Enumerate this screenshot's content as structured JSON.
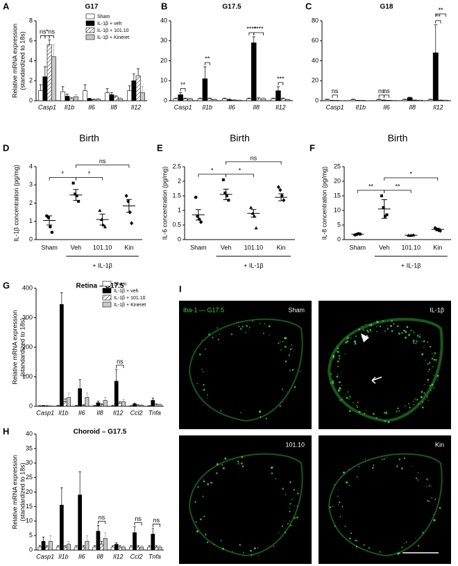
{
  "chart_data": [
    {
      "type": "bar",
      "panel": "A",
      "title": "G17",
      "ylabel": [
        "Relative mRNA expression",
        "(standardized to 18s)"
      ],
      "categories": [
        "Casp1",
        "Il1b",
        "Il6",
        "Il8",
        "Il12"
      ],
      "series": [
        {
          "name": "Sham",
          "color": "#ffffff",
          "values": [
            1,
            0.9,
            1,
            0.8,
            1
          ],
          "errors": [
            0.6,
            0.5,
            0.6,
            0.4,
            0.5
          ]
        },
        {
          "name": "IL-1β + veh",
          "color": "#000000",
          "values": [
            2.4,
            0.45,
            0.2,
            0.6,
            2
          ],
          "errors": [
            1,
            0.2,
            0.05,
            0.2,
            0.7
          ]
        },
        {
          "name": "IL-1β + 101.10",
          "color": "#ffffff",
          "hatch": true,
          "values": [
            5.6,
            0.2,
            0.1,
            0.4,
            2.5
          ],
          "errors": [
            0.5,
            0.1,
            0.05,
            0.1,
            0.7
          ]
        },
        {
          "name": "IL-1β + Kineret",
          "color": "#c8c8c8",
          "values": [
            4.4,
            0.4,
            0.15,
            0.2,
            0.8
          ],
          "errors": [
            1.2,
            0.2,
            0.05,
            0.1,
            0.6
          ]
        }
      ],
      "ylim": [
        0,
        8
      ],
      "yticks": [
        0,
        2,
        4,
        6,
        8
      ],
      "legend": "upper right",
      "annotations": [
        {
          "text": "ns",
          "category": 0,
          "between": [
            0,
            1
          ]
        },
        {
          "text": "*",
          "category": 0,
          "between": [
            1,
            2
          ]
        },
        {
          "text": "ns",
          "category": 0,
          "between": [
            2,
            3
          ]
        }
      ]
    },
    {
      "type": "bar",
      "panel": "B",
      "title": "G17.5",
      "categories": [
        "Casp1",
        "Il1b",
        "Il6",
        "Il8",
        "Il12"
      ],
      "series": [
        {
          "name": "Sham",
          "color": "#ffffff",
          "values": [
            1,
            1,
            1,
            1,
            1
          ],
          "errors": [
            0.3,
            0.3,
            0.3,
            0.3,
            0.3
          ]
        },
        {
          "name": "IL-1β + veh",
          "color": "#000000",
          "values": [
            3,
            11,
            0.5,
            29,
            5
          ],
          "errors": [
            1,
            6,
            0.3,
            3,
            2
          ]
        },
        {
          "name": "IL-1β + 101.10",
          "color": "#ffffff",
          "hatch": true,
          "values": [
            1,
            1,
            0.3,
            1,
            1
          ],
          "errors": [
            0.3,
            0.3,
            0.1,
            0.5,
            0.3
          ]
        },
        {
          "name": "IL-1β + Kineret",
          "color": "#c8c8c8",
          "values": [
            1,
            0.5,
            0.3,
            1,
            0.5
          ],
          "errors": [
            0.3,
            0.3,
            0.1,
            0.5,
            0.3
          ]
        }
      ],
      "ylim": [
        0,
        40
      ],
      "yticks": [
        0,
        10,
        20,
        30,
        40
      ],
      "annotations": [
        {
          "text": "**",
          "category": 0,
          "between": [
            1,
            2
          ]
        },
        {
          "text": "**",
          "category": 1,
          "between": [
            1,
            2
          ]
        },
        {
          "text": "****",
          "category": 3,
          "between": [
            0,
            1
          ]
        },
        {
          "text": "****",
          "category": 3,
          "between": [
            1,
            3
          ]
        },
        {
          "text": "***",
          "category": 4,
          "between": [
            1,
            2
          ]
        }
      ]
    },
    {
      "type": "bar",
      "panel": "C",
      "title": "G18",
      "categories": [
        "Casp1",
        "Il1b",
        "Il6",
        "Il8",
        "Il12"
      ],
      "series": [
        {
          "name": "Sham",
          "color": "#ffffff",
          "values": [
            1,
            1,
            1,
            1,
            1
          ],
          "errors": [
            0.5,
            0.5,
            0.5,
            0.5,
            0.5
          ]
        },
        {
          "name": "IL-1β + veh",
          "color": "#000000",
          "values": [
            0.3,
            0.3,
            0.5,
            3,
            48
          ],
          "errors": [
            0.1,
            0.1,
            0.2,
            0.5,
            28
          ]
        },
        {
          "name": "IL-1β + 101.10",
          "color": "#ffffff",
          "hatch": true,
          "values": [
            0.2,
            0.2,
            0.3,
            0.5,
            0.5
          ],
          "errors": [
            0.1,
            0.1,
            0.1,
            0.2,
            0.2
          ]
        },
        {
          "name": "IL-1β + Kineret",
          "color": "#c8c8c8",
          "values": [
            0.2,
            0.2,
            0.3,
            0.5,
            0.5
          ],
          "errors": [
            0.1,
            0.1,
            0.1,
            0.2,
            0.2
          ]
        }
      ],
      "ylim": [
        0,
        80
      ],
      "yticks": [
        0,
        20,
        40,
        60,
        80
      ],
      "annotations": [
        {
          "text": "ns",
          "category": 0,
          "between": [
            1,
            2
          ]
        },
        {
          "text": "ns",
          "category": 2,
          "between": [
            0,
            1
          ]
        },
        {
          "text": "ns",
          "category": 2,
          "between": [
            1,
            2
          ]
        },
        {
          "text": "**",
          "category": 4,
          "between": [
            1,
            2
          ]
        },
        {
          "text": "**",
          "category": 4,
          "between": [
            1,
            3
          ]
        }
      ]
    },
    {
      "type": "dot",
      "panel": "D",
      "title": "Birth",
      "ylabel": "IL-1β concentration (pg/mg)",
      "categories": [
        "Sham",
        "Veh",
        "101.10",
        "Kin"
      ],
      "group_label": "+ IL-1β",
      "group_span": [
        1,
        3
      ],
      "points": [
        [
          1.3,
          1.2,
          0.7,
          0.4
        ],
        [
          3.1,
          2.5,
          2.4,
          2.1
        ],
        [
          1.6,
          1.1,
          0.8,
          0.7
        ],
        [
          2.4,
          2.1,
          1.5,
          0.9
        ]
      ],
      "means": [
        1.05,
        2.45,
        1.1,
        1.85
      ],
      "sem": [
        0.25,
        0.3,
        0.3,
        0.35
      ],
      "ylim": [
        0,
        4
      ],
      "yticks": [
        0,
        1,
        2,
        3,
        4
      ],
      "annotations": [
        {
          "text": "*",
          "between": [
            0,
            1
          ]
        },
        {
          "text": "*",
          "between": [
            1,
            2
          ]
        },
        {
          "text": "ns",
          "between": [
            1,
            3
          ]
        }
      ]
    },
    {
      "type": "dot",
      "panel": "E",
      "title": "Birth",
      "ylabel": "IL-6 concentration (pg/mg)",
      "categories": [
        "Sham",
        "Veh",
        "101.10",
        "Kin"
      ],
      "group_label": "+ IL-1β",
      "group_span": [
        1,
        3
      ],
      "points": [
        [
          1.45,
          0.8,
          0.7,
          0.6
        ],
        [
          2.05,
          1.6,
          1.5,
          1.35
        ],
        [
          1.1,
          0.9,
          0.8,
          0.4
        ],
        [
          1.8,
          1.7,
          1.5,
          1.35
        ]
      ],
      "means": [
        0.85,
        1.55,
        0.9,
        1.45
      ],
      "sem": [
        0.18,
        0.18,
        0.13,
        0.12
      ],
      "ylim": [
        0,
        2.5
      ],
      "yticks": [
        0,
        0.5,
        1,
        1.5,
        2,
        2.5
      ],
      "annotations": [
        {
          "text": "*",
          "between": [
            0,
            1
          ]
        },
        {
          "text": "*",
          "between": [
            1,
            2
          ]
        },
        {
          "text": "ns",
          "between": [
            1,
            3
          ]
        }
      ]
    },
    {
      "type": "dot",
      "panel": "F",
      "title": "Birth",
      "ylabel": "IL-8 concentration (pg/mg)",
      "categories": [
        "Sham",
        "Veh",
        "101.10",
        "Kin"
      ],
      "group_label": "+ IL-1β",
      "group_span": [
        1,
        3
      ],
      "points": [
        [
          1.6,
          1.8,
          2,
          1.9
        ],
        [
          15,
          11,
          8,
          8.5
        ],
        [
          1.5,
          1.4,
          1.5,
          1.6
        ],
        [
          4,
          3.5,
          3.2,
          3
        ]
      ],
      "means": [
        1.85,
        10.5,
        1.5,
        3.5
      ],
      "sem": [
        0.1,
        3.2,
        0.05,
        0.4
      ],
      "ylim": [
        0,
        25
      ],
      "yticks": [
        0,
        5,
        10,
        15,
        20,
        25
      ],
      "annotations": [
        {
          "text": "**",
          "between": [
            0,
            1
          ]
        },
        {
          "text": "**",
          "between": [
            1,
            2
          ]
        },
        {
          "text": "*",
          "between": [
            1,
            3
          ]
        }
      ]
    },
    {
      "type": "bar",
      "panel": "G",
      "title": "Retina – G17.5",
      "ylabel": [
        "Relative mRNA expression",
        "(standardized to 18s)"
      ],
      "categories": [
        "Casp1",
        "Il1b",
        "Il6",
        "Il8",
        "Il12",
        "Ccl2",
        "Tnfa"
      ],
      "series": [
        {
          "name": "Sham",
          "color": "#ffffff",
          "values": [
            1,
            1,
            1,
            1,
            1,
            1,
            1
          ],
          "errors": [
            1,
            2,
            2,
            2,
            2,
            1,
            1
          ]
        },
        {
          "name": "IL-1β + veh",
          "color": "#000000",
          "values": [
            2,
            345,
            60,
            12,
            85,
            8,
            20
          ],
          "errors": [
            1,
            40,
            30,
            5,
            40,
            3,
            8
          ]
        },
        {
          "name": "IL-1β + 101.10",
          "color": "#ffffff",
          "hatch": true,
          "values": [
            1,
            15,
            3,
            5,
            10,
            3,
            5
          ],
          "errors": [
            1,
            10,
            2,
            3,
            5,
            2,
            3
          ]
        },
        {
          "name": "IL-1β + Kineret",
          "color": "#c8c8c8",
          "values": [
            1,
            30,
            30,
            20,
            15,
            3,
            5
          ],
          "errors": [
            1,
            15,
            15,
            10,
            8,
            2,
            3
          ]
        }
      ],
      "ylim": [
        0,
        400
      ],
      "yticks": [
        0,
        100,
        200,
        300,
        400
      ],
      "legend": "upper right",
      "annotations": [
        {
          "text": "ns",
          "category": 4,
          "between": [
            1,
            3
          ]
        }
      ]
    },
    {
      "type": "bar",
      "panel": "H",
      "title": "Choroid – G17.5",
      "ylabel": [
        "Relative mRNA expression",
        "(standardized to 18s)"
      ],
      "categories": [
        "Casp1",
        "Il1b",
        "Il6",
        "Il8",
        "Il12",
        "Ccl2",
        "Tnfa"
      ],
      "series": [
        {
          "name": "Sham",
          "color": "#ffffff",
          "values": [
            1,
            1,
            1,
            1,
            1,
            1,
            1
          ],
          "errors": [
            0.5,
            0.5,
            0.5,
            0.5,
            0.5,
            0.5,
            0.5
          ]
        },
        {
          "name": "IL-1β + veh",
          "color": "#000000",
          "values": [
            3,
            15.5,
            19,
            6.5,
            2,
            6,
            5.5
          ],
          "errors": [
            1.5,
            6,
            8,
            2,
            0.5,
            2,
            2
          ]
        },
        {
          "name": "IL-1β + 101.10",
          "color": "#ffffff",
          "hatch": true,
          "values": [
            1,
            1,
            1,
            2,
            1,
            1,
            1
          ],
          "errors": [
            0.5,
            0.5,
            0.5,
            1,
            0.5,
            0.5,
            0.5
          ]
        },
        {
          "name": "IL-1β + Kineret",
          "color": "#c8c8c8",
          "values": [
            3,
            2,
            3,
            4,
            1,
            1,
            1
          ],
          "errors": [
            2,
            1,
            2,
            2,
            0.5,
            0.5,
            0.5
          ]
        }
      ],
      "ylim": [
        0,
        40
      ],
      "yticks": [
        0,
        5,
        10,
        15,
        20,
        25,
        30,
        35,
        40
      ],
      "annotations": [
        {
          "text": "ns",
          "category": 3,
          "between": [
            1,
            3
          ]
        },
        {
          "text": "ns",
          "category": 5,
          "between": [
            1,
            3
          ]
        },
        {
          "text": "ns",
          "category": 6,
          "between": [
            1,
            3
          ]
        }
      ]
    }
  ],
  "panel_i": {
    "panel": "I",
    "label": "Iba-1 — G17.5",
    "images": [
      "Sham",
      "IL-1β",
      "101.10",
      "Kin"
    ]
  }
}
